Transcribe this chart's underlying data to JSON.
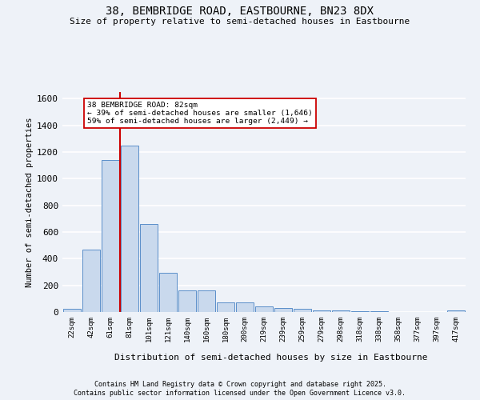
{
  "title1": "38, BEMBRIDGE ROAD, EASTBOURNE, BN23 8DX",
  "title2": "Size of property relative to semi-detached houses in Eastbourne",
  "xlabel": "Distribution of semi-detached houses by size in Eastbourne",
  "ylabel": "Number of semi-detached properties",
  "bin_labels": [
    "22sqm",
    "42sqm",
    "61sqm",
    "81sqm",
    "101sqm",
    "121sqm",
    "140sqm",
    "160sqm",
    "180sqm",
    "200sqm",
    "219sqm",
    "239sqm",
    "259sqm",
    "279sqm",
    "298sqm",
    "318sqm",
    "338sqm",
    "358sqm",
    "377sqm",
    "397sqm",
    "417sqm"
  ],
  "bar_heights": [
    25,
    470,
    1140,
    1250,
    660,
    295,
    160,
    160,
    70,
    70,
    40,
    30,
    25,
    15,
    10,
    8,
    5,
    3,
    2,
    1,
    10
  ],
  "bar_color": "#c9d9ed",
  "bar_edge_color": "#5b8fc9",
  "property_bin_index": 3,
  "annotation_title": "38 BEMBRIDGE ROAD: 82sqm",
  "annotation_line1": "← 39% of semi-detached houses are smaller (1,646)",
  "annotation_line2": "59% of semi-detached houses are larger (2,449) →",
  "vline_color": "#cc0000",
  "ylim_max": 1650,
  "yticks": [
    0,
    200,
    400,
    600,
    800,
    1000,
    1200,
    1400,
    1600
  ],
  "footer1": "Contains HM Land Registry data © Crown copyright and database right 2025.",
  "footer2": "Contains public sector information licensed under the Open Government Licence v3.0.",
  "bg_color": "#eef2f8",
  "grid_color": "#ffffff"
}
